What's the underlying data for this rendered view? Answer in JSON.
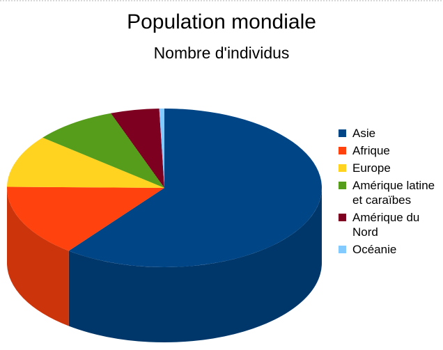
{
  "chart_data": {
    "type": "pie",
    "title": "Population mondiale",
    "subtitle": "Nombre d'individus",
    "legend_position": "right",
    "series": [
      {
        "name": "Asie",
        "value": 4164,
        "color": "#004586"
      },
      {
        "name": "Afrique",
        "value": 1022,
        "color": "#ff420e"
      },
      {
        "name": "Europe",
        "value": 738,
        "color": "#ffd320"
      },
      {
        "name": "Amérique latine et caraïbes",
        "value": 590,
        "color": "#579d1c"
      },
      {
        "name": "Amérique du Nord",
        "value": 345,
        "color": "#7e0021"
      },
      {
        "name": "Océanie",
        "value": 36,
        "color": "#83caff"
      }
    ]
  }
}
